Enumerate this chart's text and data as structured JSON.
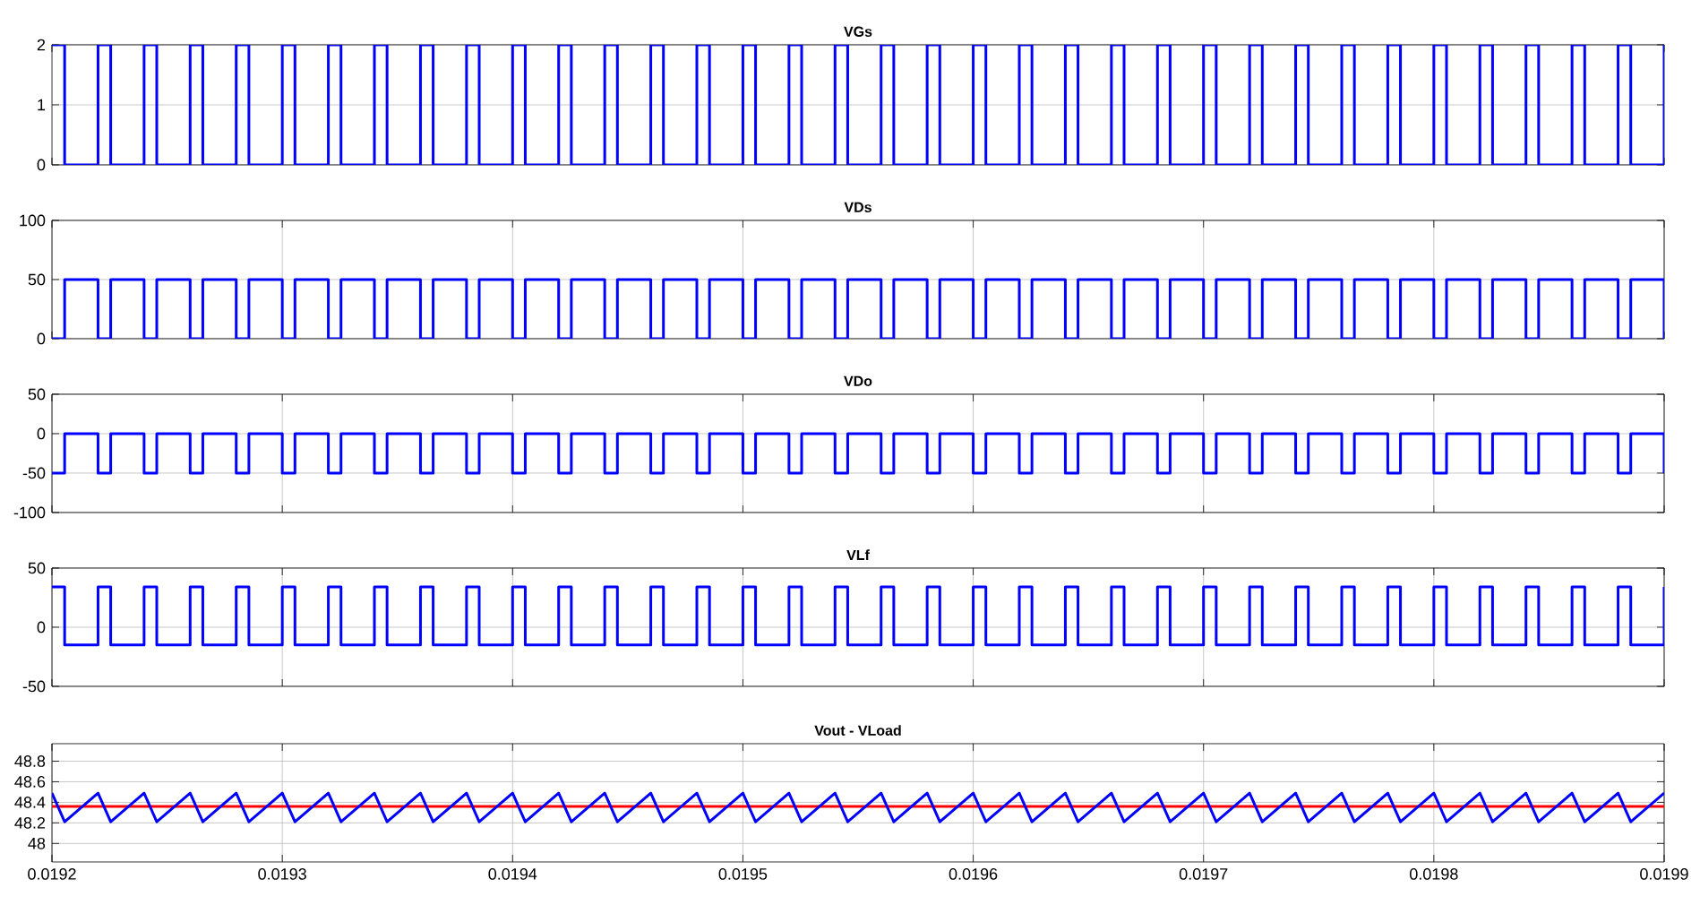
{
  "chart_data": [
    {
      "type": "step",
      "title": "VGs",
      "x": [
        0.0192,
        0.0192055,
        0.01922,
        0.0192255,
        0.01924,
        0.0192455,
        0.01926,
        0.0192655,
        0.01928,
        0.0192855,
        0.0193,
        0.0193055,
        0.01932,
        0.0193255,
        0.01934,
        0.0193455,
        0.01936,
        0.0193655,
        0.01938,
        0.0193855,
        0.0194,
        0.0194055,
        0.01942,
        0.0194255,
        0.01944,
        0.0194455,
        0.01946,
        0.0194655,
        0.01948,
        0.0194855,
        0.0195,
        0.0195055,
        0.01952,
        0.0195255,
        0.01954,
        0.0195455,
        0.01956,
        0.0195655,
        0.01958,
        0.0195855,
        0.0196,
        0.0196055,
        0.01962,
        0.0196255,
        0.01964,
        0.0196455,
        0.01966,
        0.0196655,
        0.01968,
        0.0196855,
        0.0197,
        0.0197055,
        0.01972,
        0.0197255,
        0.01974,
        0.0197455,
        0.01976,
        0.0197655,
        0.01978,
        0.0197855,
        0.0198,
        0.0198055,
        0.01982,
        0.0198255,
        0.01984,
        0.0198455,
        0.01986,
        0.0198655,
        0.01988,
        0.0198855,
        0.0199
      ],
      "series": [
        {
          "color": "#0000ff",
          "values": [
            2,
            0,
            2,
            0,
            2,
            0,
            2,
            0,
            2,
            0,
            2,
            0,
            2,
            0,
            2,
            0,
            2,
            0,
            2,
            0,
            2,
            0,
            2,
            0,
            2,
            0,
            2,
            0,
            2,
            0,
            2,
            0,
            2,
            0,
            2,
            0,
            2,
            0,
            2,
            0,
            2,
            0,
            2,
            0,
            2,
            0,
            2,
            0,
            2,
            0,
            2,
            0,
            2,
            0,
            2,
            0,
            2,
            0,
            2,
            0,
            2,
            0,
            2,
            0,
            2,
            0,
            2,
            0,
            2,
            0,
            2
          ]
        }
      ],
      "xlim": [
        0.0192,
        0.0199
      ],
      "xticks": [
        0.0192,
        0.0193,
        0.0194,
        0.0195,
        0.0196,
        0.0197,
        0.0198,
        0.0199
      ],
      "ylim": [
        0,
        2
      ],
      "yticks": [
        0,
        1,
        2
      ],
      "grid": "y",
      "tick_labels": "y"
    },
    {
      "type": "step",
      "title": "VDs",
      "x": [
        0.0192,
        0.0192055,
        0.01922,
        0.0192255,
        0.01924,
        0.0192455,
        0.01926,
        0.0192655,
        0.01928,
        0.0192855,
        0.0193,
        0.0193055,
        0.01932,
        0.0193255,
        0.01934,
        0.0193455,
        0.01936,
        0.0193655,
        0.01938,
        0.0193855,
        0.0194,
        0.0194055,
        0.01942,
        0.0194255,
        0.01944,
        0.0194455,
        0.01946,
        0.0194655,
        0.01948,
        0.0194855,
        0.0195,
        0.0195055,
        0.01952,
        0.0195255,
        0.01954,
        0.0195455,
        0.01956,
        0.0195655,
        0.01958,
        0.0195855,
        0.0196,
        0.0196055,
        0.01962,
        0.0196255,
        0.01964,
        0.0196455,
        0.01966,
        0.0196655,
        0.01968,
        0.0196855,
        0.0197,
        0.0197055,
        0.01972,
        0.0197255,
        0.01974,
        0.0197455,
        0.01976,
        0.0197655,
        0.01978,
        0.0197855,
        0.0198,
        0.0198055,
        0.01982,
        0.0198255,
        0.01984,
        0.0198455,
        0.01986,
        0.0198655,
        0.01988,
        0.0198855,
        0.0199
      ],
      "series": [
        {
          "color": "#0000ff",
          "values": [
            0,
            50,
            0,
            50,
            0,
            50,
            0,
            50,
            0,
            50,
            0,
            50,
            0,
            50,
            0,
            50,
            0,
            50,
            0,
            50,
            0,
            50,
            0,
            50,
            0,
            50,
            0,
            50,
            0,
            50,
            0,
            50,
            0,
            50,
            0,
            50,
            0,
            50,
            0,
            50,
            0,
            50,
            0,
            50,
            0,
            50,
            0,
            50,
            0,
            50,
            0,
            50,
            0,
            50,
            0,
            50,
            0,
            50,
            0,
            50,
            0,
            50,
            0,
            50,
            0,
            50,
            0,
            50,
            0,
            50,
            0
          ]
        }
      ],
      "xlim": [
        0.0192,
        0.0199
      ],
      "xticks": [
        0.0192,
        0.0193,
        0.0194,
        0.0195,
        0.0196,
        0.0197,
        0.0198,
        0.0199
      ],
      "ylim": [
        0,
        100
      ],
      "yticks": [
        0,
        50,
        100
      ],
      "grid": true,
      "tick_labels": "y"
    },
    {
      "type": "step",
      "title": "VDo",
      "x": [
        0.0192,
        0.0192055,
        0.01922,
        0.0192255,
        0.01924,
        0.0192455,
        0.01926,
        0.0192655,
        0.01928,
        0.0192855,
        0.0193,
        0.0193055,
        0.01932,
        0.0193255,
        0.01934,
        0.0193455,
        0.01936,
        0.0193655,
        0.01938,
        0.0193855,
        0.0194,
        0.0194055,
        0.01942,
        0.0194255,
        0.01944,
        0.0194455,
        0.01946,
        0.0194655,
        0.01948,
        0.0194855,
        0.0195,
        0.0195055,
        0.01952,
        0.0195255,
        0.01954,
        0.0195455,
        0.01956,
        0.0195655,
        0.01958,
        0.0195855,
        0.0196,
        0.0196055,
        0.01962,
        0.0196255,
        0.01964,
        0.0196455,
        0.01966,
        0.0196655,
        0.01968,
        0.0196855,
        0.0197,
        0.0197055,
        0.01972,
        0.0197255,
        0.01974,
        0.0197455,
        0.01976,
        0.0197655,
        0.01978,
        0.0197855,
        0.0198,
        0.0198055,
        0.01982,
        0.0198255,
        0.01984,
        0.0198455,
        0.01986,
        0.0198655,
        0.01988,
        0.0198855,
        0.0199
      ],
      "series": [
        {
          "color": "#0000ff",
          "values": [
            -50,
            0,
            -50,
            0,
            -50,
            0,
            -50,
            0,
            -50,
            0,
            -50,
            0,
            -50,
            0,
            -50,
            0,
            -50,
            0,
            -50,
            0,
            -50,
            0,
            -50,
            0,
            -50,
            0,
            -50,
            0,
            -50,
            0,
            -50,
            0,
            -50,
            0,
            -50,
            0,
            -50,
            0,
            -50,
            0,
            -50,
            0,
            -50,
            0,
            -50,
            0,
            -50,
            0,
            -50,
            0,
            -50,
            0,
            -50,
            0,
            -50,
            0,
            -50,
            0,
            -50,
            0,
            -50,
            0,
            -50,
            0,
            -50,
            0,
            -50,
            0,
            -50,
            0,
            -50
          ]
        }
      ],
      "xlim": [
        0.0192,
        0.0199
      ],
      "xticks": [
        0.0192,
        0.0193,
        0.0194,
        0.0195,
        0.0196,
        0.0197,
        0.0198,
        0.0199
      ],
      "ylim": [
        -100,
        50
      ],
      "yticks": [
        -100,
        -50,
        0,
        50
      ],
      "grid": true,
      "tick_labels": "y"
    },
    {
      "type": "step",
      "title": "VLf",
      "x": [
        0.0192,
        0.0192055,
        0.01922,
        0.0192255,
        0.01924,
        0.0192455,
        0.01926,
        0.0192655,
        0.01928,
        0.0192855,
        0.0193,
        0.0193055,
        0.01932,
        0.0193255,
        0.01934,
        0.0193455,
        0.01936,
        0.0193655,
        0.01938,
        0.0193855,
        0.0194,
        0.0194055,
        0.01942,
        0.0194255,
        0.01944,
        0.0194455,
        0.01946,
        0.0194655,
        0.01948,
        0.0194855,
        0.0195,
        0.0195055,
        0.01952,
        0.0195255,
        0.01954,
        0.0195455,
        0.01956,
        0.0195655,
        0.01958,
        0.0195855,
        0.0196,
        0.0196055,
        0.01962,
        0.0196255,
        0.01964,
        0.0196455,
        0.01966,
        0.0196655,
        0.01968,
        0.0196855,
        0.0197,
        0.0197055,
        0.01972,
        0.0197255,
        0.01974,
        0.0197455,
        0.01976,
        0.0197655,
        0.01978,
        0.0197855,
        0.0198,
        0.0198055,
        0.01982,
        0.0198255,
        0.01984,
        0.0198455,
        0.01986,
        0.0198655,
        0.01988,
        0.0198855,
        0.0199
      ],
      "series": [
        {
          "color": "#0000ff",
          "values": [
            34,
            -15,
            34,
            -15,
            34,
            -15,
            34,
            -15,
            34,
            -15,
            34,
            -15,
            34,
            -15,
            34,
            -15,
            34,
            -15,
            34,
            -15,
            34,
            -15,
            34,
            -15,
            34,
            -15,
            34,
            -15,
            34,
            -15,
            34,
            -15,
            34,
            -15,
            34,
            -15,
            34,
            -15,
            34,
            -15,
            34,
            -15,
            34,
            -15,
            34,
            -15,
            34,
            -15,
            34,
            -15,
            34,
            -15,
            34,
            -15,
            34,
            -15,
            34,
            -15,
            34,
            -15,
            34,
            -15,
            34,
            -15,
            34,
            -15,
            34,
            -15,
            34,
            -15,
            34
          ]
        }
      ],
      "xlim": [
        0.0192,
        0.0199
      ],
      "xticks": [
        0.0192,
        0.0193,
        0.0194,
        0.0195,
        0.0196,
        0.0197,
        0.0198,
        0.0199
      ],
      "ylim": [
        -50,
        50
      ],
      "yticks": [
        -50,
        0,
        50
      ],
      "grid": true,
      "tick_labels": "y"
    },
    {
      "type": "line",
      "title": "Vout - VLoad",
      "x": [
        0.0192,
        0.0192055,
        0.01922,
        0.0192255,
        0.01924,
        0.0192455,
        0.01926,
        0.0192655,
        0.01928,
        0.0192855,
        0.0193,
        0.0193055,
        0.01932,
        0.0193255,
        0.01934,
        0.0193455,
        0.01936,
        0.0193655,
        0.01938,
        0.0193855,
        0.0194,
        0.0194055,
        0.01942,
        0.0194255,
        0.01944,
        0.0194455,
        0.01946,
        0.0194655,
        0.01948,
        0.0194855,
        0.0195,
        0.0195055,
        0.01952,
        0.0195255,
        0.01954,
        0.0195455,
        0.01956,
        0.0195655,
        0.01958,
        0.0195855,
        0.0196,
        0.0196055,
        0.01962,
        0.0196255,
        0.01964,
        0.0196455,
        0.01966,
        0.0196655,
        0.01968,
        0.0196855,
        0.0197,
        0.0197055,
        0.01972,
        0.0197255,
        0.01974,
        0.0197455,
        0.01976,
        0.0197655,
        0.01978,
        0.0197855,
        0.0198,
        0.0198055,
        0.01982,
        0.0198255,
        0.01984,
        0.0198455,
        0.01986,
        0.0198655,
        0.01988,
        0.0198855,
        0.0199
      ],
      "series": [
        {
          "color": "#ff0000",
          "x": [
            0.0192,
            0.0199
          ],
          "values": [
            48.36,
            48.36
          ]
        },
        {
          "color": "#0000ff",
          "values": [
            48.49,
            48.21,
            48.49,
            48.21,
            48.49,
            48.21,
            48.49,
            48.21,
            48.49,
            48.21,
            48.49,
            48.21,
            48.49,
            48.21,
            48.49,
            48.21,
            48.49,
            48.21,
            48.49,
            48.21,
            48.49,
            48.21,
            48.49,
            48.21,
            48.49,
            48.21,
            48.49,
            48.21,
            48.49,
            48.21,
            48.49,
            48.21,
            48.49,
            48.21,
            48.49,
            48.21,
            48.49,
            48.21,
            48.49,
            48.21,
            48.49,
            48.21,
            48.49,
            48.21,
            48.49,
            48.21,
            48.49,
            48.21,
            48.49,
            48.21,
            48.49,
            48.21,
            48.49,
            48.21,
            48.49,
            48.21,
            48.49,
            48.21,
            48.49,
            48.21,
            48.49,
            48.21,
            48.49,
            48.21,
            48.49,
            48.21,
            48.49,
            48.21,
            48.49,
            48.21,
            48.49
          ]
        }
      ],
      "xlim": [
        0.0192,
        0.0199
      ],
      "xticks": [
        0.0192,
        0.0193,
        0.0194,
        0.0195,
        0.0196,
        0.0197,
        0.0198,
        0.0199
      ],
      "ylim": [
        47.82,
        48.97
      ],
      "yticks": [
        48,
        48.2,
        48.4,
        48.6,
        48.8
      ],
      "grid": true
    }
  ]
}
